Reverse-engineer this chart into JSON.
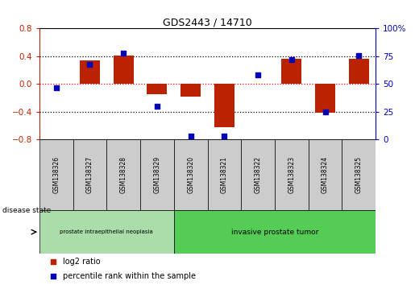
{
  "title": "GDS2443 / 14710",
  "samples": [
    "GSM138326",
    "GSM138327",
    "GSM138328",
    "GSM138329",
    "GSM138320",
    "GSM138321",
    "GSM138322",
    "GSM138323",
    "GSM138324",
    "GSM138325"
  ],
  "log2_ratio": [
    0.0,
    0.34,
    0.41,
    -0.15,
    -0.18,
    -0.62,
    0.0,
    0.36,
    -0.41,
    0.37
  ],
  "percentile_rank": [
    47,
    68,
    78,
    30,
    3,
    3,
    58,
    72,
    25,
    76
  ],
  "bar_color": "#bb2200",
  "dot_color": "#0000bb",
  "ylim_left": [
    -0.8,
    0.8
  ],
  "ylim_right": [
    0,
    100
  ],
  "yticks_left": [
    -0.8,
    -0.4,
    0.0,
    0.4,
    0.8
  ],
  "yticks_right": [
    0,
    25,
    50,
    75,
    100
  ],
  "group1_label": "prostate intraepithelial neoplasia",
  "group1_count": 4,
  "group2_label": "invasive prostate tumor",
  "group2_count": 6,
  "disease_state_label": "disease state",
  "legend_bar_label": "log2 ratio",
  "legend_dot_label": "percentile rank within the sample",
  "group1_color": "#aaddaa",
  "group2_color": "#55cc55",
  "sample_box_color": "#cccccc",
  "bar_width": 0.6
}
